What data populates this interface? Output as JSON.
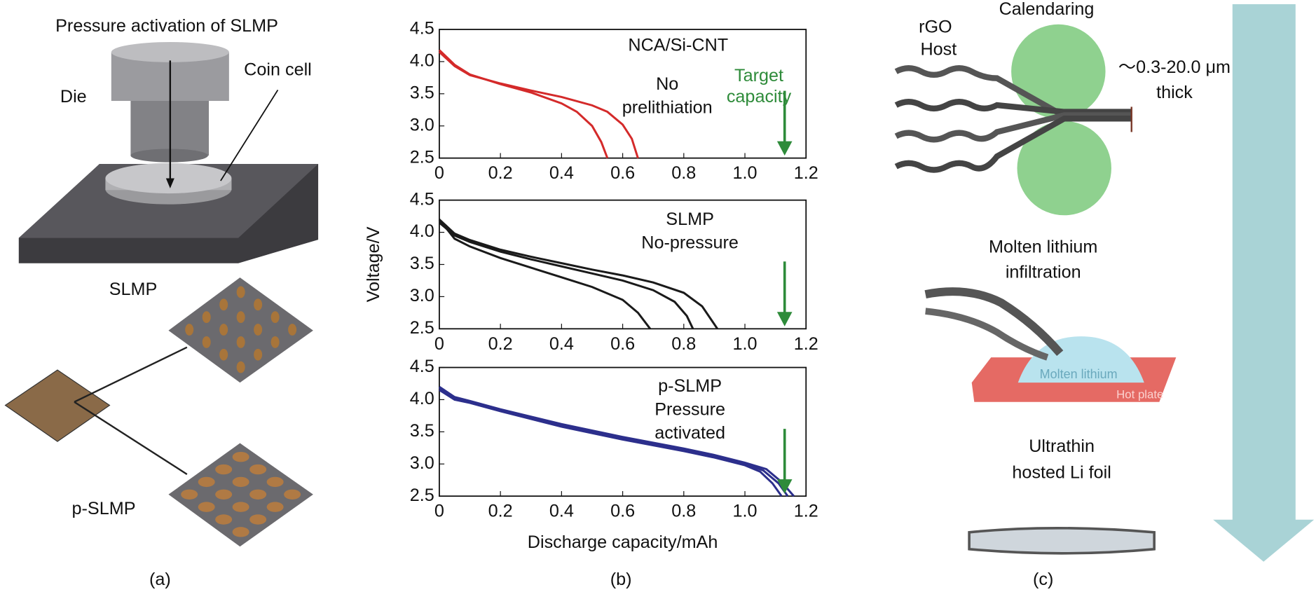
{
  "panel_a": {
    "title": "Pressure activation of SLMP",
    "die": "Die",
    "coin_cell": "Coin cell",
    "slmp": "SLMP",
    "p_slmp": "p-SLMP"
  },
  "captions": [
    "(a)",
    "(b)",
    "(c)"
  ],
  "chart_data": [
    {
      "type": "line",
      "xlim": [
        0,
        1.2
      ],
      "ylim": [
        2.5,
        4.5
      ],
      "xticks": [
        0,
        0.2,
        0.4,
        0.6,
        0.8,
        {
          "value": 1,
          "label": "1.0"
        },
        1.2
      ],
      "yticks": [
        2.5,
        {
          "value": 3,
          "label": "3.0"
        },
        3.5,
        {
          "value": 4,
          "label": "4.0"
        },
        4.5
      ],
      "annotations": [
        {
          "lines": [
            "NCA/Si-CNT"
          ]
        },
        {
          "lines": [
            "No",
            "prelithiation"
          ]
        }
      ],
      "target": 1.13,
      "target_color": "#2e8b3a",
      "target_label": [
        "Target",
        "capacity"
      ],
      "series": [
        {
          "color": "#d42a2a",
          "x": [
            0,
            0.05,
            0.1,
            0.2,
            0.3,
            0.4,
            0.45,
            0.5,
            0.53,
            0.55
          ],
          "values": [
            4.18,
            3.95,
            3.8,
            3.65,
            3.52,
            3.35,
            3.22,
            3.0,
            2.75,
            2.5
          ]
        },
        {
          "color": "#d42a2a",
          "x": [
            0,
            0.05,
            0.1,
            0.2,
            0.3,
            0.4,
            0.5,
            0.55,
            0.6,
            0.63,
            0.65
          ],
          "values": [
            4.15,
            3.93,
            3.79,
            3.66,
            3.55,
            3.45,
            3.32,
            3.22,
            3.02,
            2.8,
            2.5
          ]
        }
      ]
    },
    {
      "type": "line",
      "xlim": [
        0,
        1.2
      ],
      "ylim": [
        2.5,
        4.5
      ],
      "ylabel": "Voltage/V",
      "xticks": [
        0,
        0.2,
        0.4,
        0.6,
        0.8,
        {
          "value": 1,
          "label": "1.0"
        },
        1.2
      ],
      "yticks": [
        2.5,
        {
          "value": 3,
          "label": "3.0"
        },
        3.5,
        {
          "value": 4,
          "label": "4.0"
        },
        4.5
      ],
      "annotations": [
        {
          "lines": [
            "SLMP",
            "No-pressure"
          ]
        }
      ],
      "target": 1.13,
      "target_color": "#2e8b3a",
      "series": [
        {
          "color": "#1a1a1a",
          "x": [
            0,
            0.05,
            0.1,
            0.2,
            0.3,
            0.4,
            0.5,
            0.6,
            0.65,
            0.69
          ],
          "values": [
            4.2,
            3.9,
            3.78,
            3.6,
            3.45,
            3.3,
            3.15,
            2.95,
            2.75,
            2.5
          ]
        },
        {
          "color": "#1a1a1a",
          "x": [
            0,
            0.05,
            0.1,
            0.2,
            0.3,
            0.4,
            0.5,
            0.6,
            0.7,
            0.77,
            0.81,
            0.83
          ],
          "values": [
            4.15,
            3.95,
            3.85,
            3.7,
            3.58,
            3.47,
            3.36,
            3.25,
            3.1,
            2.92,
            2.7,
            2.5
          ]
        },
        {
          "color": "#1a1a1a",
          "x": [
            0,
            0.05,
            0.1,
            0.2,
            0.3,
            0.4,
            0.5,
            0.6,
            0.7,
            0.8,
            0.86,
            0.91
          ],
          "values": [
            4.2,
            3.98,
            3.88,
            3.73,
            3.62,
            3.52,
            3.42,
            3.33,
            3.22,
            3.06,
            2.85,
            2.5
          ]
        }
      ]
    },
    {
      "type": "line",
      "xlim": [
        0,
        1.2
      ],
      "ylim": [
        2.5,
        4.5
      ],
      "xlabel": "Discharge capacity/mAh",
      "xticks": [
        0,
        0.2,
        0.4,
        0.6,
        0.8,
        {
          "value": 1,
          "label": "1.0"
        },
        1.2
      ],
      "yticks": [
        2.5,
        {
          "value": 3,
          "label": "3.0"
        },
        3.5,
        {
          "value": 4,
          "label": "4.0"
        },
        4.5
      ],
      "annotations": [
        {
          "lines": [
            "p-SLMP",
            "Pressure",
            "activated"
          ]
        }
      ],
      "target": 1.13,
      "target_color": "#2e8b3a",
      "series": [
        {
          "color": "#2c2f8c",
          "x": [
            0,
            0.05,
            0.1,
            0.2,
            0.4,
            0.6,
            0.8,
            0.9,
            1.0,
            1.05,
            1.09,
            1.12
          ],
          "values": [
            4.15,
            4.0,
            3.95,
            3.82,
            3.58,
            3.38,
            3.2,
            3.1,
            2.98,
            2.88,
            2.7,
            2.5
          ]
        },
        {
          "color": "#2c2f8c",
          "x": [
            0,
            0.05,
            0.1,
            0.2,
            0.4,
            0.6,
            0.8,
            0.9,
            1.0,
            1.06,
            1.11,
            1.14
          ],
          "values": [
            4.18,
            4.02,
            3.96,
            3.83,
            3.6,
            3.4,
            3.22,
            3.12,
            3.0,
            2.9,
            2.7,
            2.5
          ]
        },
        {
          "color": "#2c2f8c",
          "x": [
            0,
            0.05,
            0.1,
            0.2,
            0.4,
            0.6,
            0.8,
            0.9,
            1.0,
            1.07,
            1.12,
            1.16
          ],
          "values": [
            4.2,
            4.04,
            3.98,
            3.85,
            3.62,
            3.42,
            3.24,
            3.14,
            3.02,
            2.92,
            2.72,
            2.5
          ]
        }
      ]
    }
  ],
  "panel_c": {
    "rgo_host": [
      "rGO",
      "Host"
    ],
    "calendaring": "Calendaring",
    "thickness": [
      "～0.3-20.0 μm",
      "thick"
    ],
    "infiltration": [
      "Molten lithium",
      "infiltration"
    ],
    "drop_label": "Molten lithium",
    "plate_label": "Hot plate",
    "foil": [
      "Ultrathin",
      "hosted Li foil"
    ]
  }
}
